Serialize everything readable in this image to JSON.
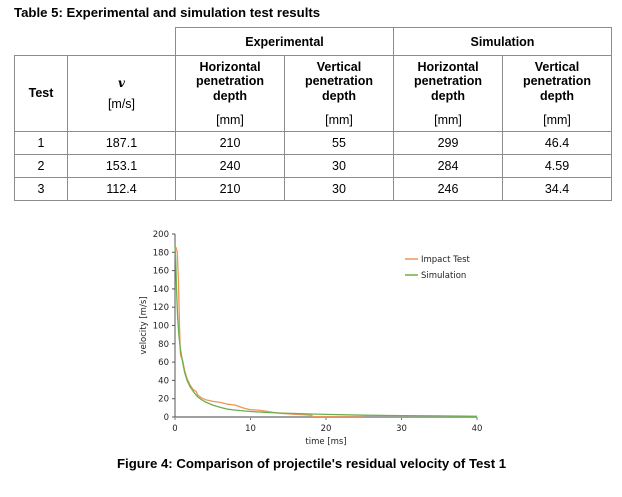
{
  "table": {
    "title": "Table 5: Experimental and simulation test results",
    "group_headers": [
      "Experimental",
      "Simulation"
    ],
    "columns": [
      {
        "label": "Test",
        "unit": ""
      },
      {
        "label": "v",
        "unit": "[m/s]"
      },
      {
        "label": "Horizontal penetration depth",
        "unit": "[mm]"
      },
      {
        "label": "Vertical penetration depth",
        "unit": "[mm]"
      },
      {
        "label": "Horizontal penetration depth",
        "unit": "[mm]"
      },
      {
        "label": "Vertical penetration depth",
        "unit": "[mm]"
      }
    ],
    "rows": [
      [
        "1",
        "187.1",
        "210",
        "55",
        "299",
        "46.4"
      ],
      [
        "2",
        "153.1",
        "240",
        "30",
        "284",
        "4.59"
      ],
      [
        "3",
        "112.4",
        "210",
        "30",
        "246",
        "34.4"
      ]
    ]
  },
  "figure": {
    "caption": "Figure 4: Comparison of projectile's residual velocity of Test 1"
  },
  "chart_data": {
    "type": "line",
    "title": "",
    "xlabel": "time [ms]",
    "ylabel": "velocity [m/s]",
    "xlim": [
      0,
      40
    ],
    "ylim": [
      0,
      200
    ],
    "xticks": [
      0,
      10,
      20,
      30,
      40
    ],
    "yticks": [
      0,
      20,
      40,
      60,
      80,
      100,
      120,
      140,
      160,
      180,
      200
    ],
    "grid": false,
    "legend_position": "top-right",
    "series": [
      {
        "name": "Impact Test",
        "color": "#f0945a",
        "x": [
          0,
          0.15,
          0.3,
          0.45,
          0.6,
          0.7,
          0.8,
          1.0,
          1.3,
          1.6,
          2.0,
          2.4,
          2.8,
          3.0,
          3.5,
          4.0,
          5.0,
          6.0,
          7.0,
          8.0,
          9.0,
          10.0,
          11.0,
          12.0,
          13.0,
          14.0,
          15.0,
          16.0,
          17.0,
          18.0,
          18.3,
          19.0,
          20.0,
          22.0,
          25.0
        ],
        "y": [
          186,
          185,
          180,
          150,
          100,
          70,
          66,
          62,
          50,
          42,
          35,
          30,
          28,
          24,
          21,
          19,
          17,
          16,
          14,
          13,
          10,
          8,
          7.5,
          6.5,
          5,
          4,
          3.5,
          3,
          2.5,
          2,
          0.5,
          0.3,
          0.2,
          0.1,
          0
        ]
      },
      {
        "name": "Simulation",
        "color": "#6ab04c",
        "x": [
          0,
          0.1,
          0.2,
          0.35,
          0.5,
          0.7,
          1.0,
          1.3,
          1.6,
          2.0,
          2.5,
          3.0,
          3.5,
          4.0,
          5.0,
          6.0,
          7.0,
          8.0,
          10.0,
          12.0,
          14.0,
          16.0,
          18.0,
          20.0,
          25.0,
          30.0,
          35.0,
          40.0
        ],
        "y": [
          187,
          170,
          140,
          110,
          90,
          75,
          60,
          48,
          40,
          33,
          27,
          22,
          19,
          16.5,
          13,
          10.5,
          8.5,
          7.5,
          6,
          5,
          4.3,
          3.8,
          3.3,
          2.8,
          2.0,
          1.5,
          1.2,
          0.8
        ]
      }
    ]
  }
}
